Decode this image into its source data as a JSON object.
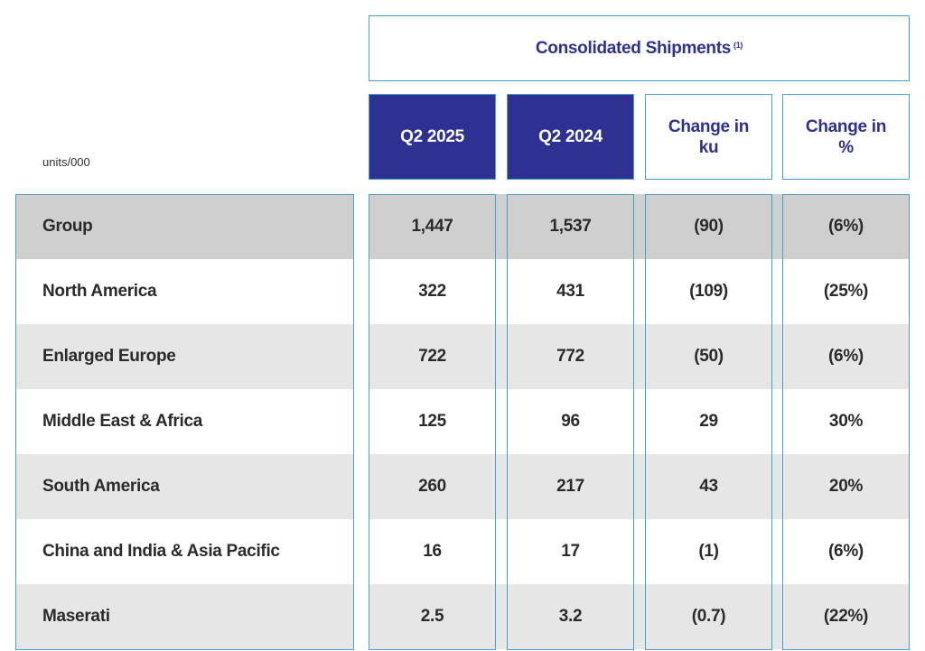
{
  "units_label": "units/000",
  "super_header": {
    "title": "Consolidated Shipments",
    "footnote": "(1)"
  },
  "columns": [
    {
      "label": "Q2 2025",
      "style": "filled"
    },
    {
      "label": "Q2 2024",
      "style": "filled"
    },
    {
      "label": "Change in ku",
      "style": "outline"
    },
    {
      "label": "Change in %",
      "style": "outline"
    }
  ],
  "colors": {
    "header_fill": "#2e3192",
    "border": "#4a9fd0",
    "group_row": "#cfcfcf",
    "alt_row": "#e6e6e6"
  },
  "chart_data": {
    "type": "table",
    "title": "Consolidated Shipments (1)",
    "unit": "units/000",
    "headers": [
      "Q2 2025",
      "Q2 2024",
      "Change in ku",
      "Change in %"
    ],
    "rows": [
      {
        "label": "Group",
        "values": [
          "1,447",
          "1,537",
          "(90)",
          "(6%)"
        ]
      },
      {
        "label": "North America",
        "values": [
          "322",
          "431",
          "(109)",
          "(25%)"
        ]
      },
      {
        "label": "Enlarged Europe",
        "values": [
          "722",
          "772",
          "(50)",
          "(6%)"
        ]
      },
      {
        "label": "Middle East & Africa",
        "values": [
          "125",
          "96",
          "29",
          "30%"
        ]
      },
      {
        "label": "South America",
        "values": [
          "260",
          "217",
          "43",
          "20%"
        ]
      },
      {
        "label": "China and India & Asia Pacific",
        "values": [
          "16",
          "17",
          "(1)",
          "(6%)"
        ]
      },
      {
        "label": "Maserati",
        "values": [
          "2.5",
          "3.2",
          "(0.7)",
          "(22%)"
        ]
      }
    ]
  }
}
